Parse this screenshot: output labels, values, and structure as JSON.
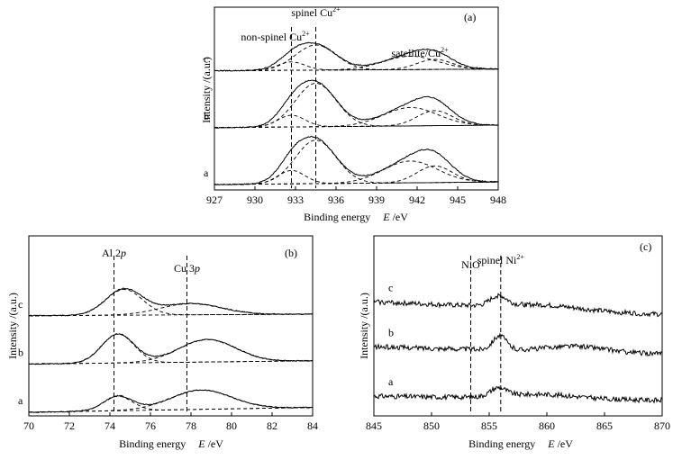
{
  "chart_data": [
    {
      "id": "a",
      "type": "line",
      "panel_label": "(a)",
      "xlabel": "Binding energy",
      "xlabel_italic": "E",
      "xlabel_unit": " /eV",
      "ylabel": "Intensity /(a.u.)",
      "xlim": [
        927,
        948
      ],
      "xticks": [
        927,
        930,
        933,
        936,
        939,
        942,
        945,
        948
      ],
      "ylim": [
        0,
        1
      ],
      "annotations": [
        {
          "text": "spinel Cu",
          "sup": "2+",
          "x": 934.5
        },
        {
          "text": "non-spinel Cu",
          "sup": "2+",
          "x": 932.7
        },
        {
          "text": "satellite/Cu",
          "sup": "2+",
          "x": 942.5
        }
      ],
      "ref_lines": [
        932.7,
        934.5
      ],
      "series": [
        {
          "name": "a",
          "offset": 0.0,
          "peaks": [
            [
              934.5,
              0.26,
              1.5
            ],
            [
              932.7,
              0.08,
              1.0
            ],
            [
              941.5,
              0.13,
              2.0
            ],
            [
              943.3,
              0.1,
              1.3
            ]
          ],
          "baseline": [
            0.0,
            0.015
          ]
        },
        {
          "name": "b",
          "offset": 0.34,
          "peaks": [
            [
              934.5,
              0.26,
              1.5
            ],
            [
              932.7,
              0.07,
              1.0
            ],
            [
              941.5,
              0.11,
              2.0
            ],
            [
              943.3,
              0.09,
              1.3
            ]
          ],
          "baseline": [
            0.0,
            0.015
          ]
        },
        {
          "name": "c",
          "offset": 0.68,
          "peaks": [
            [
              934.5,
              0.15,
              1.5
            ],
            [
              932.7,
              0.05,
              1.0
            ],
            [
              941.5,
              0.08,
              2.0
            ],
            [
              943.3,
              0.06,
              1.3
            ]
          ],
          "baseline": [
            0.0,
            0.01
          ]
        }
      ]
    },
    {
      "id": "b",
      "type": "line",
      "panel_label": "(b)",
      "xlabel": "Binding energy",
      "xlabel_italic": "E",
      "xlabel_unit": " /eV",
      "ylabel": "Intensity /(a.u.)",
      "xlim": [
        70,
        84
      ],
      "xticks": [
        70,
        72,
        74,
        76,
        78,
        80,
        82,
        84
      ],
      "ylim": [
        0,
        1
      ],
      "annotations": [
        {
          "text": "Al 2",
          "italic": "p",
          "x": 74.2
        },
        {
          "text": "Cu 3",
          "italic": "p",
          "x": 77.8
        }
      ],
      "ref_lines": [
        74.2,
        77.8
      ],
      "series": [
        {
          "name": "a",
          "offset": 0.0,
          "peaks": [
            [
              74.4,
              0.09,
              0.7
            ],
            [
              78.5,
              0.12,
              1.5
            ]
          ],
          "baseline": [
            0.0,
            0.03
          ]
        },
        {
          "name": "b",
          "offset": 0.3,
          "peaks": [
            [
              74.4,
              0.18,
              0.8
            ],
            [
              78.8,
              0.14,
              1.4
            ]
          ],
          "baseline": [
            0.0,
            0.02
          ]
        },
        {
          "name": "c",
          "offset": 0.6,
          "peaks": [
            [
              74.7,
              0.16,
              0.9
            ],
            [
              78.0,
              0.07,
              1.5
            ]
          ],
          "baseline": [
            0.0,
            0.01
          ]
        }
      ]
    },
    {
      "id": "c",
      "type": "line",
      "panel_label": "(c)",
      "xlabel": "Binding energy",
      "xlabel_italic": "E",
      "xlabel_unit": " /eV",
      "ylabel": "Intensity /(a.u.)",
      "xlim": [
        845,
        870
      ],
      "xticks": [
        845,
        850,
        855,
        860,
        865,
        870
      ],
      "ylim": [
        0,
        1
      ],
      "annotations": [
        {
          "text": "NiO",
          "x": 853.4
        },
        {
          "text": "spinel Ni",
          "sup": "2+",
          "x": 856.0
        }
      ],
      "ref_lines": [
        853.4,
        856.0
      ],
      "series": [
        {
          "name": "a",
          "offset": 0.0,
          "peaks": [
            [
              855.8,
              0.06,
              0.7
            ],
            [
              859.5,
              0.03,
              3.0
            ]
          ],
          "baseline": [
            0.0,
            -0.03
          ]
        },
        {
          "name": "b",
          "offset": 0.32,
          "peaks": [
            [
              855.9,
              0.1,
              0.6
            ],
            [
              862.5,
              0.04,
              2.5
            ]
          ],
          "baseline": [
            0.03,
            -0.02
          ]
        },
        {
          "name": "c",
          "offset": 0.64,
          "peaks": [
            [
              855.8,
              0.07,
              0.7
            ],
            [
              859.5,
              0.03,
              3.0
            ]
          ],
          "baseline": [
            0.03,
            -0.06
          ]
        }
      ]
    }
  ]
}
